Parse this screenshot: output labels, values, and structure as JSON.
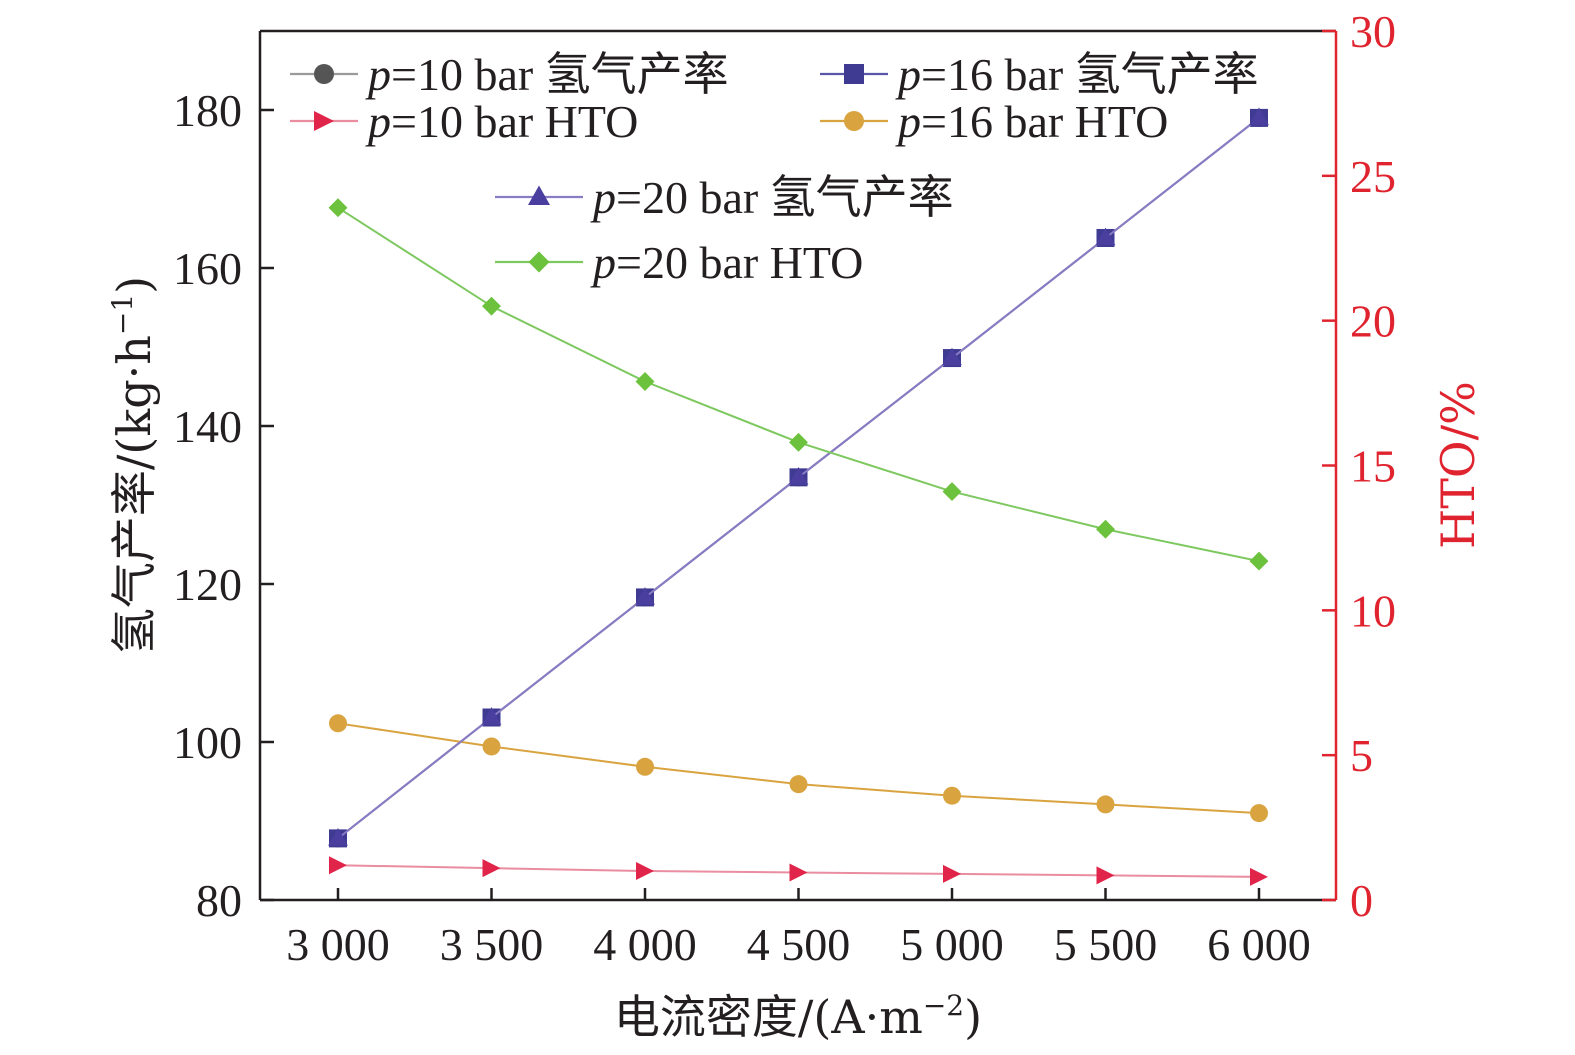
{
  "chart_data": {
    "type": "line",
    "xlabel": "电流密度/(A·m",
    "xlabel_sup": "−2",
    "xlabel_close": ")",
    "ylabel_left": "氢气产率/(kg·h",
    "ylabel_left_sup": "−1",
    "ylabel_left_close": ")",
    "ylabel_right": "HTO/%",
    "x": [
      3000,
      3500,
      4000,
      4500,
      5000,
      5500,
      6000
    ],
    "x_tick_labels": [
      "3 000",
      "3 500",
      "4 000",
      "4 500",
      "5 000",
      "5 500",
      "6 000"
    ],
    "y_left_ticks": [
      "80",
      "100",
      "120",
      "140",
      "160",
      "180"
    ],
    "y_right_ticks": [
      "0",
      "5",
      "10",
      "15",
      "20",
      "25",
      "30"
    ],
    "y_left_lim": [
      80,
      190
    ],
    "y_right_lim": [
      0,
      30
    ],
    "grid": false,
    "series": [
      {
        "name": "p=10 bar 氢气产率",
        "name_p": "p",
        "name_rest": "=10 bar 氢气产率",
        "axis": "left",
        "marker": "circle",
        "color": "#555555",
        "line_color": "#9a9a9a",
        "values": [
          87.8,
          103.1,
          118.3,
          133.5,
          148.6,
          163.8,
          179.0
        ]
      },
      {
        "name": "p=16 bar 氢气产率",
        "name_p": "p",
        "name_rest": "=16 bar 氢气产率",
        "axis": "left",
        "marker": "square",
        "color": "#3f3b93",
        "line_color": "#5a55a8",
        "values": [
          87.8,
          103.1,
          118.3,
          133.5,
          148.6,
          163.8,
          179.0
        ]
      },
      {
        "name": "p=10 bar HTO",
        "name_p": "p",
        "name_rest": "=10 bar HTO",
        "axis": "right",
        "marker": "triangle-right",
        "color": "#e0244a",
        "line_color": "#ea8da0",
        "values": [
          1.2,
          1.1,
          1.0,
          0.95,
          0.9,
          0.85,
          0.8
        ]
      },
      {
        "name": "p=16 bar HTO",
        "name_p": "p",
        "name_rest": "=16 bar HTO",
        "axis": "right",
        "marker": "circle",
        "color": "#d9a440",
        "line_color": "#d9a440",
        "values": [
          6.1,
          5.3,
          4.6,
          4.0,
          3.6,
          3.3,
          3.0
        ]
      },
      {
        "name": "p=20 bar 氢气产率",
        "name_p": "p",
        "name_rest": "=20 bar 氢气产率",
        "axis": "left",
        "marker": "triangle-up",
        "color": "#4a3f9f",
        "line_color": "#8a7cc4",
        "values": [
          87.8,
          103.1,
          118.3,
          133.5,
          148.6,
          163.8,
          179.0
        ]
      },
      {
        "name": "p=20 bar HTO",
        "name_p": "p",
        "name_rest": "=20 bar HTO",
        "axis": "right",
        "marker": "diamond",
        "color": "#6cc13d",
        "line_color": "#7ec860",
        "values": [
          23.9,
          20.5,
          17.9,
          15.8,
          14.1,
          12.8,
          11.7
        ]
      }
    ],
    "colors": {
      "axis_left": "#231f20",
      "axis_right": "#e0242f"
    }
  }
}
